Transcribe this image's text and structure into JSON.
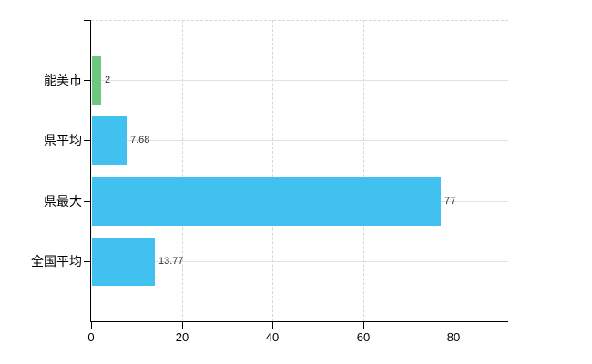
{
  "chart_data": {
    "type": "bar",
    "orientation": "horizontal",
    "title": "",
    "xlabel": "",
    "ylabel": "",
    "categories": [
      "能美市",
      "県平均",
      "県最大",
      "全国平均"
    ],
    "values": [
      2,
      7.68,
      77,
      13.77
    ],
    "value_labels": [
      "2",
      "7.68",
      "77",
      "13.77"
    ],
    "bar_colors": [
      "#6fc87f",
      "#41c1f0",
      "#41c1f0",
      "#41c1f0"
    ],
    "x_ticks": [
      0,
      20,
      40,
      60,
      80
    ],
    "x_tick_labels": [
      "0",
      "20",
      "40",
      "60",
      "80"
    ],
    "xlim": [
      0,
      92
    ],
    "grid": {
      "vertical": "dashed",
      "horizontal_row_lines": "solid",
      "top_border": "dashed"
    },
    "legend": "none"
  },
  "colors": {
    "background": "#ffffff",
    "bar_blue": "#41c1f0",
    "bar_green": "#6fc87f",
    "axis": "#000000",
    "grid_solid": "#dde4dd",
    "grid_dashed": "#d6d6d6",
    "value_label_text": "#333333",
    "tick_label_text": "#000000"
  }
}
